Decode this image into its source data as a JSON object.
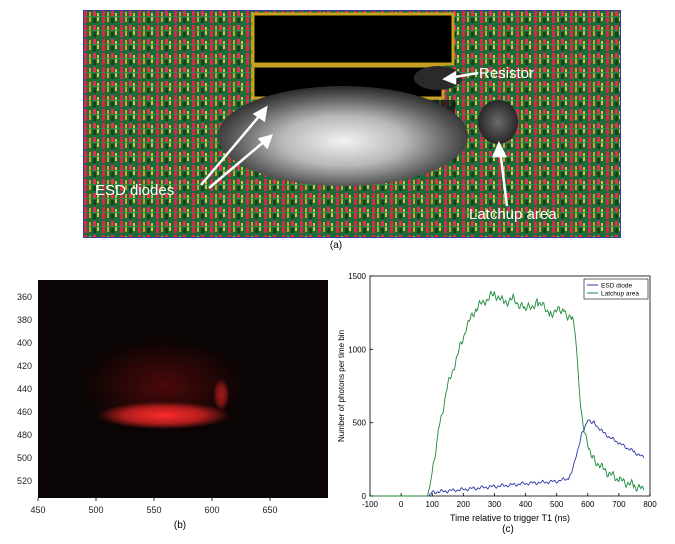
{
  "figure": {
    "panel_a": {
      "caption": "(a)",
      "labels": {
        "resistor": "Resistor",
        "esd_diodes": "ESD  diodes",
        "latchup_area": "Latchup area"
      }
    },
    "panel_b": {
      "caption": "(b)"
    },
    "panel_c": {
      "caption": "(c)"
    }
  },
  "chart_data": [
    {
      "type": "heatmap",
      "panel": "b",
      "x_ticks": [
        450,
        500,
        550,
        600,
        650
      ],
      "y_ticks": [
        360,
        380,
        400,
        420,
        440,
        460,
        480,
        500,
        520
      ],
      "xlim": [
        450,
        700
      ],
      "ylim": [
        345,
        535
      ],
      "background_color": "#0b0404",
      "glow_color": "#ff2a2a",
      "bright_band": {
        "x": [
          505,
          612
        ],
        "y": [
          455,
          471
        ]
      }
    },
    {
      "type": "line",
      "panel": "c",
      "xlabel": "Time relative to trigger T1 (ns)",
      "ylabel": "Number of photons per time bin",
      "x_ticks": [
        -100,
        0,
        100,
        200,
        300,
        400,
        500,
        600,
        700,
        800
      ],
      "y_ticks": [
        0,
        500,
        1000,
        1500
      ],
      "xlim": [
        -100,
        800
      ],
      "ylim": [
        0,
        1500
      ],
      "legend_position": "top-right",
      "series": [
        {
          "name": "ESD diode",
          "color": "#2a3aa8",
          "x": [
            -100,
            90,
            100,
            200,
            300,
            400,
            500,
            540,
            560,
            580,
            600,
            620,
            650,
            700,
            750,
            780
          ],
          "y": [
            0,
            0,
            25,
            45,
            65,
            85,
            100,
            120,
            250,
            420,
            520,
            500,
            430,
            360,
            300,
            260
          ]
        },
        {
          "name": "Latchup area",
          "color": "#1a8a3a",
          "x": [
            -100,
            85,
            100,
            120,
            150,
            180,
            210,
            240,
            270,
            300,
            330,
            360,
            400,
            440,
            480,
            520,
            550,
            560,
            570,
            580,
            600,
            620,
            650,
            700,
            750,
            780
          ],
          "y": [
            0,
            0,
            150,
            450,
            750,
            950,
            1150,
            1280,
            1330,
            1380,
            1320,
            1340,
            1270,
            1320,
            1250,
            1270,
            1200,
            1100,
            800,
            550,
            350,
            250,
            180,
            110,
            70,
            40
          ]
        }
      ]
    }
  ]
}
